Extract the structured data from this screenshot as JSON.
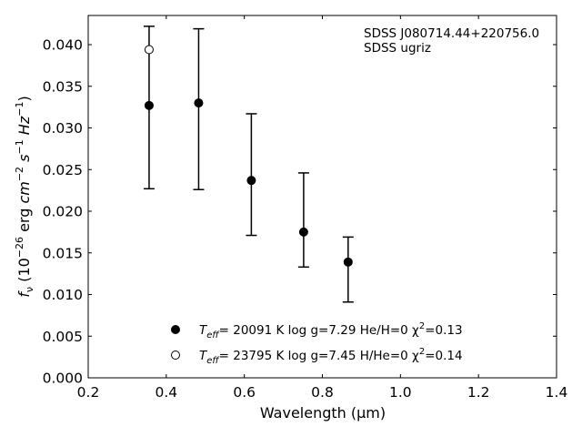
{
  "chart_data": {
    "type": "scatter",
    "title": "",
    "xlabel": "Wavelength (μm)",
    "ylabel": "f_ν (10^-26 erg cm^-2 s^-1 Hz^-1)",
    "xlim": [
      0.2,
      1.4
    ],
    "ylim": [
      0.0,
      0.0435
    ],
    "xticks": [
      0.2,
      0.4,
      0.6,
      0.8,
      1.0,
      1.2,
      1.4
    ],
    "xtick_labels": [
      "0.2",
      "0.4",
      "0.6",
      "0.8",
      "1.0",
      "1.2",
      "1.4"
    ],
    "yticks": [
      0.0,
      0.005,
      0.01,
      0.015,
      0.02,
      0.025,
      0.03,
      0.035,
      0.04
    ],
    "ytick_labels": [
      "0.000",
      "0.005",
      "0.010",
      "0.015",
      "0.020",
      "0.025",
      "0.030",
      "0.035",
      "0.040"
    ],
    "grid": false,
    "annotations": [
      "SDSS J080714.44+220756.0",
      "SDSS ugriz"
    ],
    "observed": {
      "x": [
        0.356,
        0.483,
        0.618,
        0.752,
        0.866
      ],
      "y": [
        0.0325,
        0.0323,
        0.0244,
        0.0189,
        0.013
      ],
      "yerr_low": [
        0.0227,
        0.0226,
        0.0171,
        0.0133,
        0.0091
      ],
      "yerr_high": [
        0.0422,
        0.0419,
        0.0317,
        0.0246,
        0.0169
      ]
    },
    "series": [
      {
        "legend_parts": [
          "T",
          "eff",
          "= 20091 K  log g=7.29  He/H=0  χ",
          "2",
          "=0.13"
        ],
        "marker": "filled-circle",
        "x": [
          0.356,
          0.483,
          0.618,
          0.752,
          0.866
        ],
        "y": [
          0.0327,
          0.033,
          0.0237,
          0.0175,
          0.0139
        ]
      },
      {
        "legend_parts": [
          "T",
          "eff",
          "= 23795 K  log g=7.45  H/He=0  χ",
          "2",
          "=0.14"
        ],
        "marker": "open-circle",
        "x": [
          0.356
        ],
        "y": [
          0.0394
        ]
      }
    ],
    "legend_position": "lower-center"
  }
}
